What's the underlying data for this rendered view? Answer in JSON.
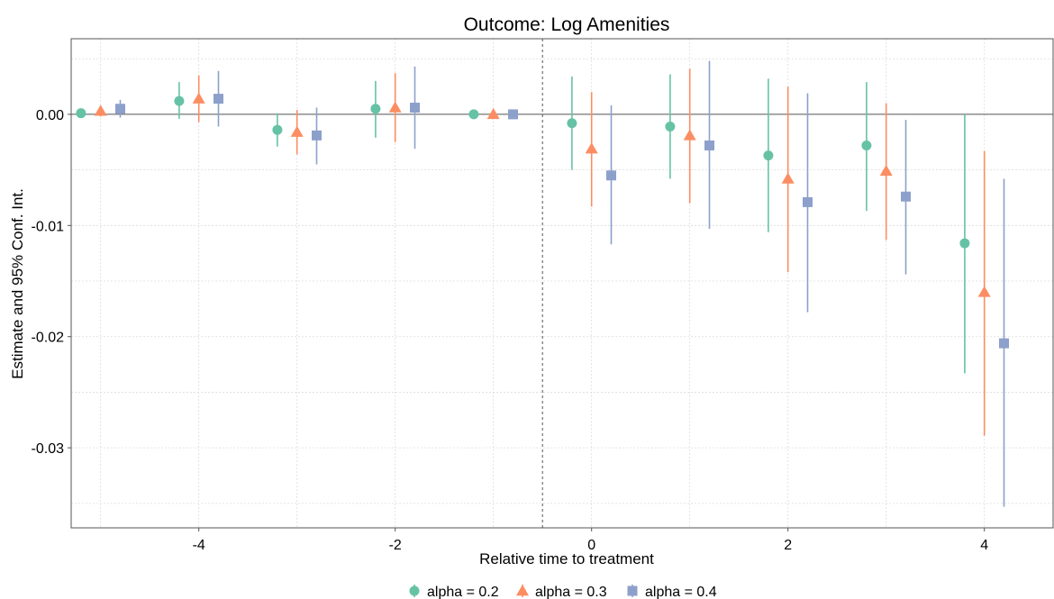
{
  "chart_data": {
    "type": "scatter",
    "subtype": "coefficient-plot-with-confidence-intervals",
    "title": "Outcome: Log Amenities",
    "xlabel": "Relative time to treatment",
    "ylabel": "Estimate and 95% Conf. Int.",
    "xlim": [
      -5.3,
      4.7
    ],
    "ylim": [
      -0.0372,
      0.0068
    ],
    "x_ticks": [
      -4,
      -2,
      0,
      2,
      4
    ],
    "x_tick_labels": [
      "-4",
      "-2",
      "0",
      "2",
      "4"
    ],
    "y_ticks": [
      0.0,
      -0.01,
      -0.02,
      -0.03
    ],
    "y_tick_labels": [
      "0.00",
      "-0.01",
      "-0.02",
      "-0.03"
    ],
    "reference_vline_x": -0.5,
    "reference_hline_y": 0,
    "grid": true,
    "legend_position": "bottom",
    "series": [
      {
        "name": "alpha = 0.2",
        "marker": "circle",
        "color": "#66c2a5",
        "x": [
          -5,
          -4,
          -3,
          -2,
          -1,
          0,
          1,
          2,
          3,
          4
        ],
        "estimate": [
          0.0001,
          0.0012,
          -0.0014,
          0.0005,
          0.0,
          -0.0008,
          -0.0011,
          -0.0037,
          -0.0028,
          -0.0116
        ],
        "ci_low": [
          -0.0003,
          -0.0004,
          -0.0029,
          -0.0021,
          0.0,
          -0.005,
          -0.0058,
          -0.0106,
          -0.0087,
          -0.0233
        ],
        "ci_high": [
          0.0004,
          0.0029,
          0.0001,
          0.003,
          0.0,
          0.0034,
          0.0036,
          0.0032,
          0.0029,
          0.0
        ]
      },
      {
        "name": "alpha = 0.3",
        "marker": "triangle",
        "color": "#fc8d62",
        "x": [
          -5,
          -4,
          -3,
          -2,
          -1,
          0,
          1,
          2,
          3,
          4
        ],
        "estimate": [
          0.0003,
          0.0014,
          -0.0016,
          0.0006,
          0.0,
          -0.0031,
          -0.0019,
          -0.0058,
          -0.0051,
          -0.016
        ],
        "ci_low": [
          -0.0002,
          -0.0007,
          -0.0036,
          -0.0025,
          0.0,
          -0.0083,
          -0.008,
          -0.0142,
          -0.0113,
          -0.0289
        ],
        "ci_high": [
          0.0007,
          0.0035,
          0.0004,
          0.0037,
          0.0,
          0.002,
          0.0041,
          0.0025,
          0.001,
          -0.0033
        ]
      },
      {
        "name": "alpha = 0.4",
        "marker": "square",
        "color": "#8da0cb",
        "x": [
          -5,
          -4,
          -3,
          -2,
          -1,
          0,
          1,
          2,
          3,
          4
        ],
        "estimate": [
          0.0005,
          0.0014,
          -0.0019,
          0.0006,
          0.0,
          -0.0055,
          -0.0028,
          -0.0079,
          -0.0074,
          -0.0206
        ],
        "ci_low": [
          -0.0003,
          -0.0011,
          -0.0045,
          -0.0031,
          0.0,
          -0.0117,
          -0.0103,
          -0.0178,
          -0.0144,
          -0.0353
        ],
        "ci_high": [
          0.0013,
          0.0039,
          0.0006,
          0.0043,
          0.0,
          0.0008,
          0.0048,
          0.0019,
          -0.0005,
          -0.0058
        ]
      }
    ],
    "series_x_offsets": [
      -0.2,
      0.0,
      0.2
    ]
  }
}
